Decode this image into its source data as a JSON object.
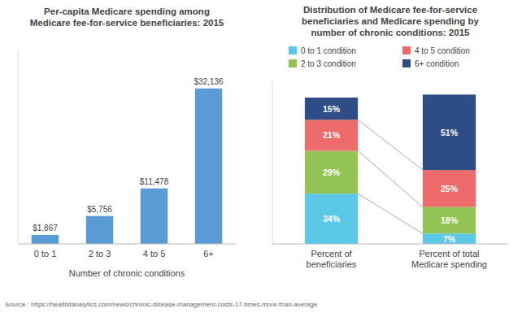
{
  "chart_data": [
    {
      "type": "bar",
      "title": "Per-capita Medicare spending among\nMedicare fee-for-service beneficiaries: 2015",
      "x_label": "Number of chronic conditions",
      "categories": [
        "0 to 1",
        "2 to 3",
        "4 to 5",
        "6+"
      ],
      "values": [
        1867,
        5756,
        11478,
        32136
      ],
      "value_labels": [
        "$1,867",
        "$5,756",
        "$11,478",
        "$32,136"
      ],
      "color": "#5b9bd5",
      "ylim": [
        0,
        40000
      ],
      "data_labels": true,
      "tick_labels": "x",
      "annotations": [
        "Source : https://healthitanalytics.com/news/chronic-disease-management-costs-17-times-more-than-average"
      ]
    },
    {
      "type": "bar",
      "stacked": true,
      "title": "Distribution of Medicare fee-for-service\nbeneficiaries and Medicare spending by\nnumber of chronic conditions: 2015",
      "categories": [
        "Percent of\nbeneficiaries",
        "Percent of total\nMedicare spending"
      ],
      "series": [
        {
          "name": "0 to 1 condition",
          "color": "#5bc8e8",
          "values": [
            34,
            7
          ],
          "value_labels": [
            "34%",
            "7%"
          ]
        },
        {
          "name": "2 to 3 condition",
          "color": "#92c353",
          "values": [
            29,
            18
          ],
          "value_labels": [
            "29%",
            "18%"
          ]
        },
        {
          "name": "4 to 5 condition",
          "color": "#ed6b6b",
          "values": [
            21,
            25
          ],
          "value_labels": [
            "21%",
            "25%"
          ]
        },
        {
          "name": "6+ condition",
          "color": "#2e4d87",
          "values": [
            15,
            51
          ],
          "value_labels": [
            "15%",
            "51%"
          ]
        }
      ],
      "ylim": [
        0,
        110
      ],
      "data_labels": true,
      "legend": "top",
      "tick_labels": "x"
    }
  ]
}
